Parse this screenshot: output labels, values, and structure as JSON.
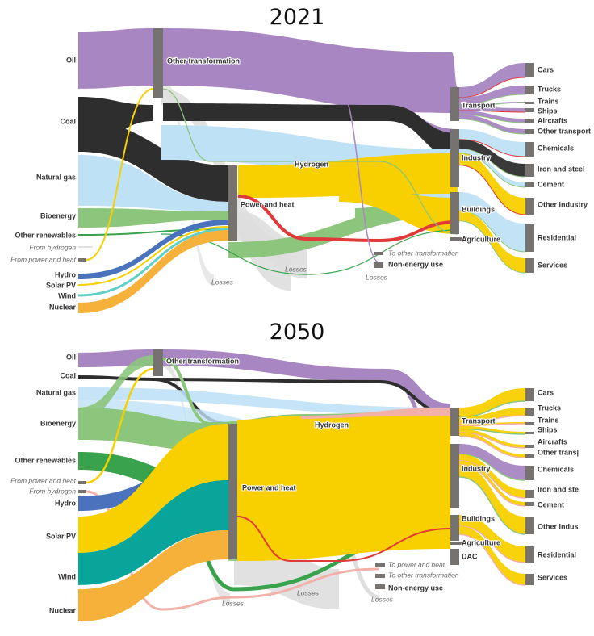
{
  "titles": {
    "y2021": "2021",
    "y2050": "2050"
  },
  "colors": {
    "oil": "#a886c2",
    "coal": "#2e2e2e",
    "gas": "#bfe1f6",
    "bio": "#8cc57c",
    "otherren": "#38a34c",
    "hydrogen": "#f3b0a8",
    "power": "#f8d000",
    "hydro": "#4a72bd",
    "solar": "#f8d000",
    "wind": "#0aa59a",
    "windline": "#5fcfc8",
    "nuclear": "#f5b13a",
    "elec_red": "#e03a3a",
    "losses": "#dedede",
    "node": "#767270"
  },
  "diagrams": [
    {
      "id": "2021",
      "sources": [
        {
          "key": "oil",
          "label": "Oil",
          "style": "bold"
        },
        {
          "key": "coal",
          "label": "Coal",
          "style": "bold"
        },
        {
          "key": "gas",
          "label": "Natural gas",
          "style": "bold"
        },
        {
          "key": "bio",
          "label": "Bioenergy",
          "style": "bold"
        },
        {
          "key": "otherren",
          "label": "Other renewables",
          "style": "bold"
        },
        {
          "key": "fromh2",
          "label": "From hydrogen",
          "style": "italic"
        },
        {
          "key": "frompower",
          "label": "From power and heat",
          "style": "italic"
        },
        {
          "key": "hydro",
          "label": "Hydro",
          "style": "bold"
        },
        {
          "key": "solar",
          "label": "Solar PV",
          "style": "bold"
        },
        {
          "key": "wind",
          "label": "Wind",
          "style": "bold"
        },
        {
          "key": "nuclear",
          "label": "Nuclear",
          "style": "bold"
        }
      ],
      "middle": [
        {
          "key": "othertrans",
          "label": "Other transformation"
        },
        {
          "key": "power",
          "label": "Power and heat"
        },
        {
          "key": "hydrogen",
          "label": "Hydrogen"
        }
      ],
      "sinks_mid": [
        {
          "key": "tootrans",
          "label": "To other transformation",
          "style": "italic"
        },
        {
          "key": "nonenergy",
          "label": "Non-energy use",
          "style": "bold"
        }
      ],
      "sectors": [
        {
          "key": "transport",
          "label": "Transport"
        },
        {
          "key": "industry",
          "label": "Industry"
        },
        {
          "key": "buildings",
          "label": "Buildings"
        },
        {
          "key": "agriculture",
          "label": "Agriculture"
        }
      ],
      "enduses": [
        {
          "label": "Cars"
        },
        {
          "label": "Trucks"
        },
        {
          "label": "Trains"
        },
        {
          "label": "Ships"
        },
        {
          "label": "Aircrafts"
        },
        {
          "label": "Other transport"
        },
        {
          "label": "Chemicals"
        },
        {
          "label": "Iron and steel"
        },
        {
          "label": "Cement"
        },
        {
          "label": "Other industry"
        },
        {
          "label": "Residential"
        },
        {
          "label": "Services"
        }
      ],
      "losses_labels": [
        "Losses",
        "Losses",
        "Losses"
      ]
    },
    {
      "id": "2050",
      "sources": [
        {
          "key": "oil",
          "label": "Oil",
          "style": "bold"
        },
        {
          "key": "coal",
          "label": "Coal",
          "style": "bold"
        },
        {
          "key": "gas",
          "label": "Natural gas",
          "style": "bold"
        },
        {
          "key": "bio",
          "label": "Bioenergy",
          "style": "bold"
        },
        {
          "key": "otherren",
          "label": "Other renewables",
          "style": "bold"
        },
        {
          "key": "frompower",
          "label": "From power and heat",
          "style": "italic"
        },
        {
          "key": "fromh2",
          "label": "From hydrogen",
          "style": "italic"
        },
        {
          "key": "hydro",
          "label": "Hydro",
          "style": "bold"
        },
        {
          "key": "solar",
          "label": "Solar PV",
          "style": "bold"
        },
        {
          "key": "wind",
          "label": "Wind",
          "style": "bold"
        },
        {
          "key": "nuclear",
          "label": "Nuclear",
          "style": "bold"
        }
      ],
      "middle": [
        {
          "key": "othertrans",
          "label": "Other transformation"
        },
        {
          "key": "power",
          "label": "Power and heat"
        },
        {
          "key": "hydrogen",
          "label": "Hydrogen"
        }
      ],
      "sinks_mid": [
        {
          "key": "topower",
          "label": "To power and heat",
          "style": "italic"
        },
        {
          "key": "tootrans",
          "label": "To other transformation",
          "style": "italic"
        },
        {
          "key": "nonenergy",
          "label": "Non-energy use",
          "style": "bold"
        }
      ],
      "sectors": [
        {
          "key": "transport",
          "label": "Transport"
        },
        {
          "key": "industry",
          "label": "Industry"
        },
        {
          "key": "buildings",
          "label": "Buildings"
        },
        {
          "key": "agriculture",
          "label": "Agriculture"
        },
        {
          "key": "dac",
          "label": "DAC"
        }
      ],
      "enduses": [
        {
          "label": "Cars"
        },
        {
          "label": "Trucks"
        },
        {
          "label": "Trains"
        },
        {
          "label": "Ships"
        },
        {
          "label": "Aircrafts"
        },
        {
          "label": "Other trans|"
        },
        {
          "label": "Chemicals"
        },
        {
          "label": "Iron and ste"
        },
        {
          "label": "Cement"
        },
        {
          "label": "Other indus"
        },
        {
          "label": "Residential"
        },
        {
          "label": "Services"
        }
      ],
      "losses_labels": [
        "Losses",
        "Losses",
        "Losses"
      ]
    }
  ]
}
